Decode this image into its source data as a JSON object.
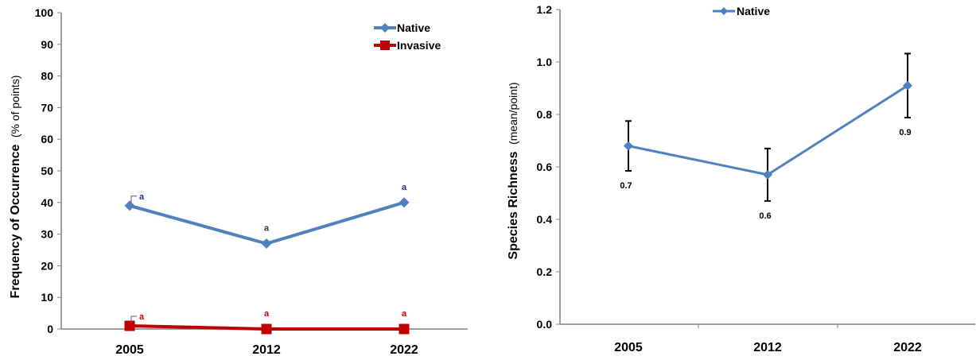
{
  "colors": {
    "native": "#4F81BD",
    "invasive": "#C00000",
    "native_label": "#1F3864",
    "axis": "#7F7F7F"
  },
  "chart_data": [
    {
      "type": "line",
      "categories": [
        "2005",
        "2012",
        "2022"
      ],
      "ylim": [
        0,
        100
      ],
      "yticks": [
        "0",
        "10",
        "20",
        "30",
        "40",
        "50",
        "60",
        "70",
        "80",
        "90",
        "100"
      ],
      "ylabel_main": "Frequency of Occurrence",
      "ylabel_unit": "(% of points)",
      "legend_position": "top-right",
      "series": [
        {
          "name": "Native",
          "values": [
            39,
            27,
            40
          ],
          "labels": [
            "a",
            "a",
            "a"
          ],
          "marker": "diamond"
        },
        {
          "name": "Invasive",
          "values": [
            1,
            0,
            0
          ],
          "labels": [
            "a",
            "a",
            "a"
          ],
          "marker": "square"
        }
      ]
    },
    {
      "type": "line",
      "categories": [
        "2005",
        "2012",
        "2022"
      ],
      "ylim": [
        0,
        1.2
      ],
      "yticks": [
        "0.0",
        "0.2",
        "0.4",
        "0.6",
        "0.8",
        "1.0",
        "1.2"
      ],
      "ylabel_main": "Species Richness",
      "ylabel_unit": "(mean/point)",
      "legend_position": "top-right",
      "series": [
        {
          "name": "Native",
          "values": [
            0.68,
            0.57,
            0.91
          ],
          "errors": [
            0.095,
            0.1,
            0.122
          ],
          "labels": [
            "0.7",
            "0.6",
            "0.9"
          ],
          "marker": "diamond"
        }
      ]
    }
  ]
}
